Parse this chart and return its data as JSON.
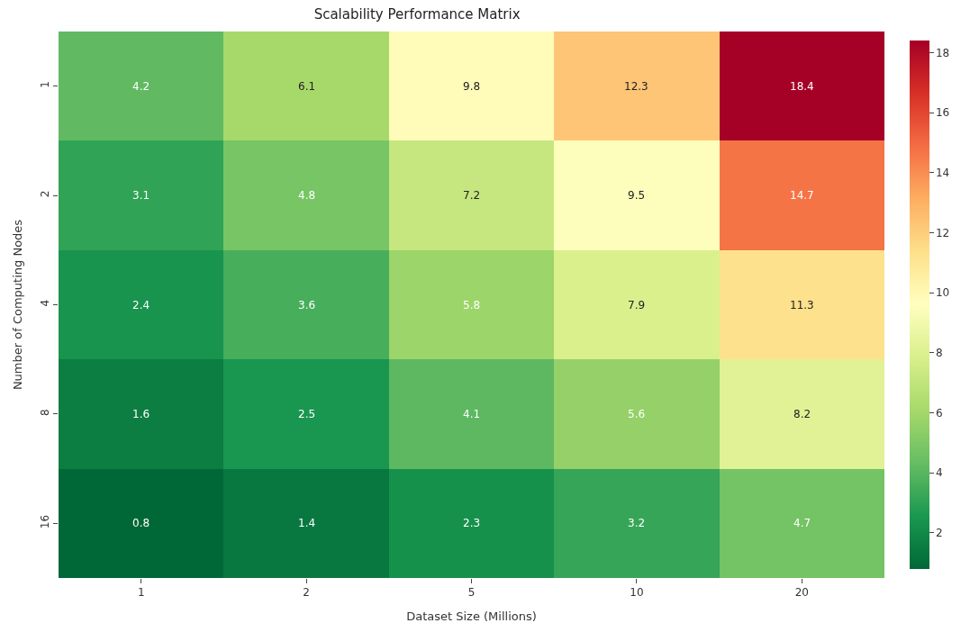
{
  "chart_data": {
    "type": "heatmap",
    "title": "Scalability Performance Matrix",
    "xlabel": "Dataset Size (Millions)",
    "ylabel": "Number of Computing Nodes",
    "categories": [
      "1",
      "2",
      "5",
      "10",
      "20"
    ],
    "y_categories": [
      "1",
      "2",
      "4",
      "8",
      "16"
    ],
    "cells": [
      [
        4.2,
        6.1,
        9.8,
        12.3,
        18.4
      ],
      [
        3.1,
        4.8,
        7.2,
        9.5,
        14.7
      ],
      [
        2.4,
        3.6,
        5.8,
        7.9,
        11.3
      ],
      [
        1.6,
        2.5,
        4.1,
        5.6,
        8.2
      ],
      [
        0.8,
        1.4,
        2.3,
        3.2,
        4.7
      ]
    ],
    "clim": [
      0.8,
      18.4
    ],
    "cticks": [
      2,
      4,
      6,
      8,
      10,
      12,
      14,
      16,
      18
    ],
    "data_labels": true
  }
}
